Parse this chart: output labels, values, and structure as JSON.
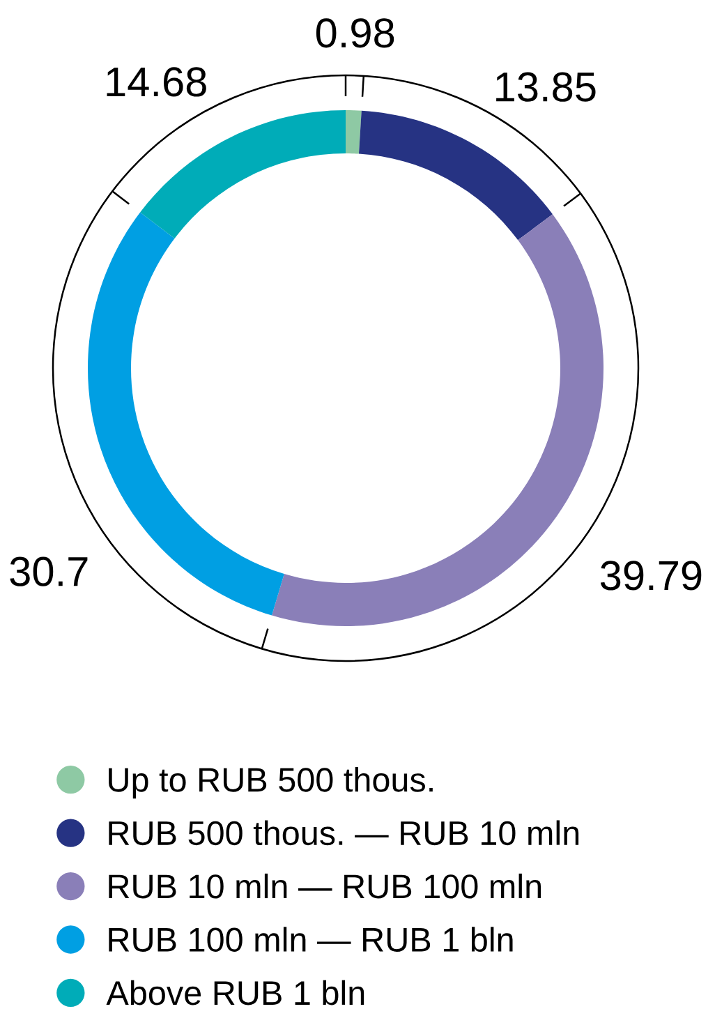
{
  "chart_data": {
    "type": "donut",
    "categories": [
      "Up to RUB 500 thous.",
      "RUB 500 thous. — RUB 10 mln",
      "RUB 10 mln — RUB 100 mln",
      "RUB 100 mln — RUB 1 bln",
      "Above RUB 1 bln"
    ],
    "values": [
      0.98,
      13.85,
      39.79,
      30.7,
      14.68
    ],
    "colors": [
      "#8ec9a4",
      "#263383",
      "#8a7fb8",
      "#009fe3",
      "#00acb8"
    ],
    "data_labels": true,
    "legend": "bottom"
  }
}
